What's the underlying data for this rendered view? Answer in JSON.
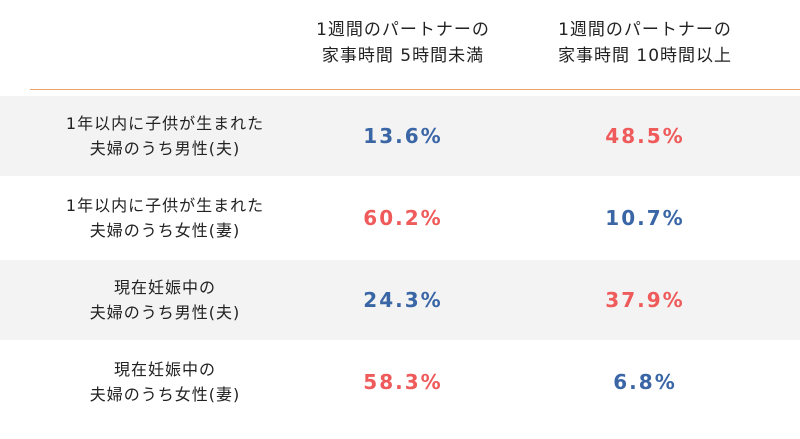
{
  "header": {
    "col1_line1": "1週間のパートナーの",
    "col1_line2": "家事時間 5時間未満",
    "col2_line1": "1週間のパートナーの",
    "col2_line2": "家事時間 10時間以上"
  },
  "colors": {
    "high": "#ef5a5a",
    "low": "#3a66a6",
    "rule": "#e8a46c",
    "shade": "#f3f3f3"
  },
  "rows": [
    {
      "label_line1": "1年以内に子供が生まれた",
      "label_line2": "夫婦のうち男性(夫)",
      "col1": "13.6%",
      "col1_tone": "low",
      "col2": "48.5%",
      "col2_tone": "high"
    },
    {
      "label_line1": "1年以内に子供が生まれた",
      "label_line2": "夫婦のうち女性(妻)",
      "col1": "60.2%",
      "col1_tone": "high",
      "col2": "10.7%",
      "col2_tone": "low"
    },
    {
      "label_line1": "現在妊娠中の",
      "label_line2": "夫婦のうち男性(夫)",
      "col1": "24.3%",
      "col1_tone": "low",
      "col2": "37.9%",
      "col2_tone": "high"
    },
    {
      "label_line1": "現在妊娠中の",
      "label_line2": "夫婦のうち女性(妻)",
      "col1": "58.3%",
      "col1_tone": "high",
      "col2": "6.8%",
      "col2_tone": "low"
    }
  ]
}
